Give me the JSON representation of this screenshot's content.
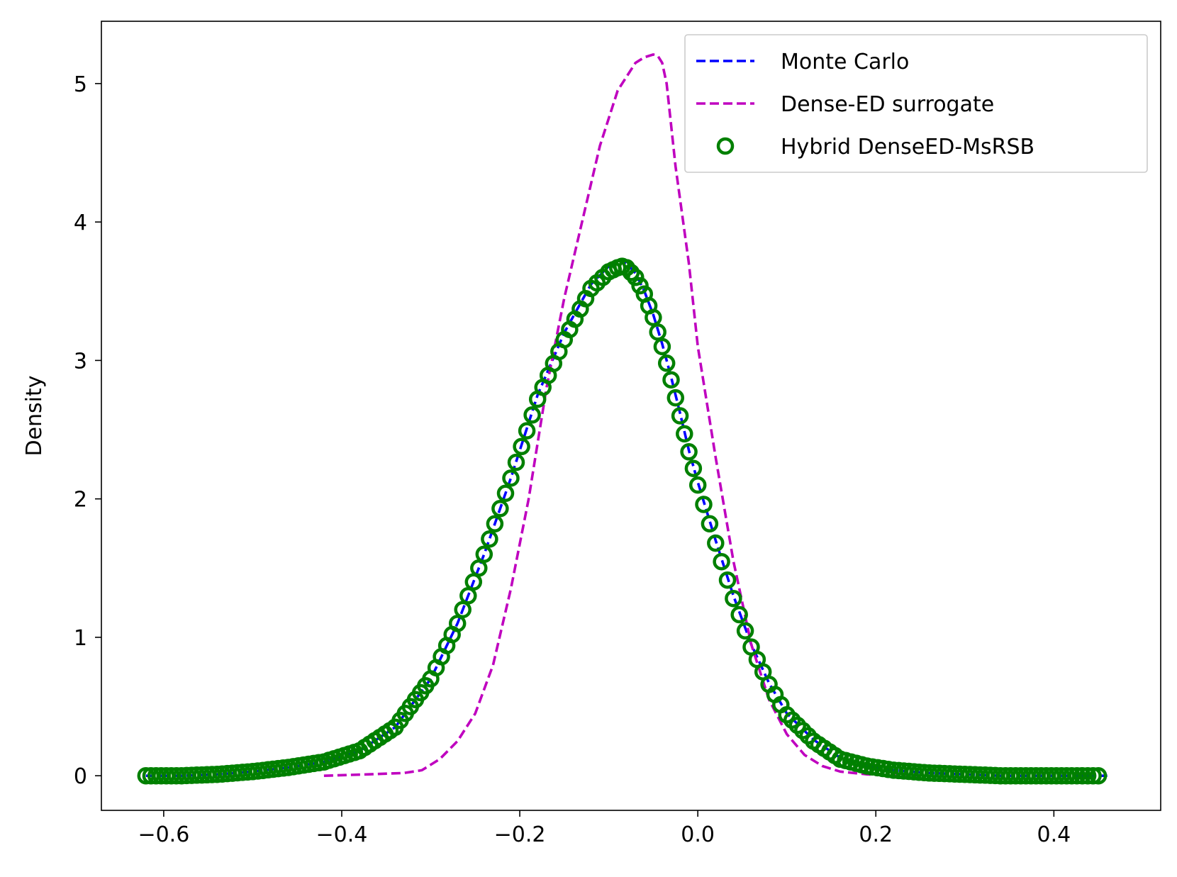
{
  "chart_data": {
    "type": "line",
    "title": "",
    "xlabel": "",
    "ylabel": "Density",
    "xlim": [
      -0.67,
      0.52
    ],
    "ylim": [
      -0.25,
      5.45
    ],
    "xticks": [
      -0.6,
      -0.4,
      -0.2,
      0.0,
      0.2,
      0.4
    ],
    "xtick_labels": [
      "−0.6",
      "−0.4",
      "−0.2",
      "0.0",
      "0.2",
      "0.4"
    ],
    "yticks": [
      0,
      1,
      2,
      3,
      4,
      5
    ],
    "ytick_labels": [
      "0",
      "1",
      "2",
      "3",
      "4",
      "5"
    ],
    "grid": false,
    "legend_position": "upper right",
    "series": [
      {
        "name": "Monte Carlo",
        "style": "dashed",
        "color": "#0000ff",
        "x": [
          -0.62,
          -0.58,
          -0.54,
          -0.5,
          -0.46,
          -0.42,
          -0.38,
          -0.34,
          -0.3,
          -0.27,
          -0.24,
          -0.21,
          -0.18,
          -0.15,
          -0.12,
          -0.1,
          -0.09,
          -0.085,
          -0.08,
          -0.07,
          -0.06,
          -0.05,
          -0.04,
          -0.03,
          -0.02,
          -0.01,
          0.0,
          0.02,
          0.04,
          0.06,
          0.08,
          0.1,
          0.13,
          0.16,
          0.19,
          0.22,
          0.26,
          0.3,
          0.34,
          0.38,
          0.42,
          0.46
        ],
        "y": [
          0.0,
          0.0,
          0.01,
          0.03,
          0.06,
          0.1,
          0.18,
          0.35,
          0.7,
          1.1,
          1.6,
          2.15,
          2.75,
          3.2,
          3.55,
          3.68,
          3.72,
          3.72,
          3.7,
          3.63,
          3.5,
          3.33,
          3.12,
          2.88,
          2.62,
          2.35,
          2.12,
          1.7,
          1.3,
          0.95,
          0.67,
          0.45,
          0.26,
          0.13,
          0.07,
          0.04,
          0.02,
          0.01,
          0.0,
          0.0,
          0.0,
          0.0
        ]
      },
      {
        "name": "Dense-ED surrogate",
        "style": "dashed",
        "color": "#bf00bf",
        "x": [
          -0.42,
          -0.37,
          -0.33,
          -0.31,
          -0.29,
          -0.27,
          -0.25,
          -0.23,
          -0.21,
          -0.19,
          -0.17,
          -0.15,
          -0.13,
          -0.11,
          -0.09,
          -0.07,
          -0.06,
          -0.05,
          -0.045,
          -0.04,
          -0.035,
          -0.025,
          -0.01,
          0.0,
          0.02,
          0.04,
          0.06,
          0.08,
          0.1,
          0.12,
          0.14,
          0.16,
          0.19,
          0.22,
          0.25
        ],
        "y": [
          0.0,
          0.01,
          0.02,
          0.04,
          0.12,
          0.25,
          0.45,
          0.8,
          1.35,
          2.0,
          2.8,
          3.45,
          4.0,
          4.55,
          4.95,
          5.15,
          5.19,
          5.21,
          5.2,
          5.15,
          5.0,
          4.4,
          3.7,
          3.1,
          2.3,
          1.55,
          0.95,
          0.55,
          0.3,
          0.15,
          0.07,
          0.03,
          0.01,
          0.0,
          0.0
        ]
      },
      {
        "name": "Hybrid DenseED-MsRSB",
        "style": "markers",
        "color": "#008000",
        "x": [
          -0.62,
          -0.58,
          -0.54,
          -0.5,
          -0.46,
          -0.42,
          -0.38,
          -0.34,
          -0.3,
          -0.27,
          -0.24,
          -0.21,
          -0.18,
          -0.15,
          -0.12,
          -0.1,
          -0.09,
          -0.085,
          -0.08,
          -0.07,
          -0.06,
          -0.05,
          -0.04,
          -0.03,
          -0.02,
          -0.01,
          0.0,
          0.02,
          0.04,
          0.06,
          0.08,
          0.1,
          0.13,
          0.16,
          0.19,
          0.22,
          0.26,
          0.3,
          0.34,
          0.38,
          0.42,
          0.45
        ],
        "y": [
          0.0,
          0.0,
          0.01,
          0.03,
          0.06,
          0.1,
          0.18,
          0.35,
          0.7,
          1.1,
          1.6,
          2.15,
          2.72,
          3.15,
          3.52,
          3.64,
          3.67,
          3.68,
          3.67,
          3.6,
          3.48,
          3.31,
          3.1,
          2.86,
          2.6,
          2.34,
          2.1,
          1.68,
          1.28,
          0.93,
          0.66,
          0.44,
          0.25,
          0.12,
          0.07,
          0.04,
          0.02,
          0.01,
          0.0,
          0.0,
          0.0,
          0.0
        ]
      }
    ]
  }
}
